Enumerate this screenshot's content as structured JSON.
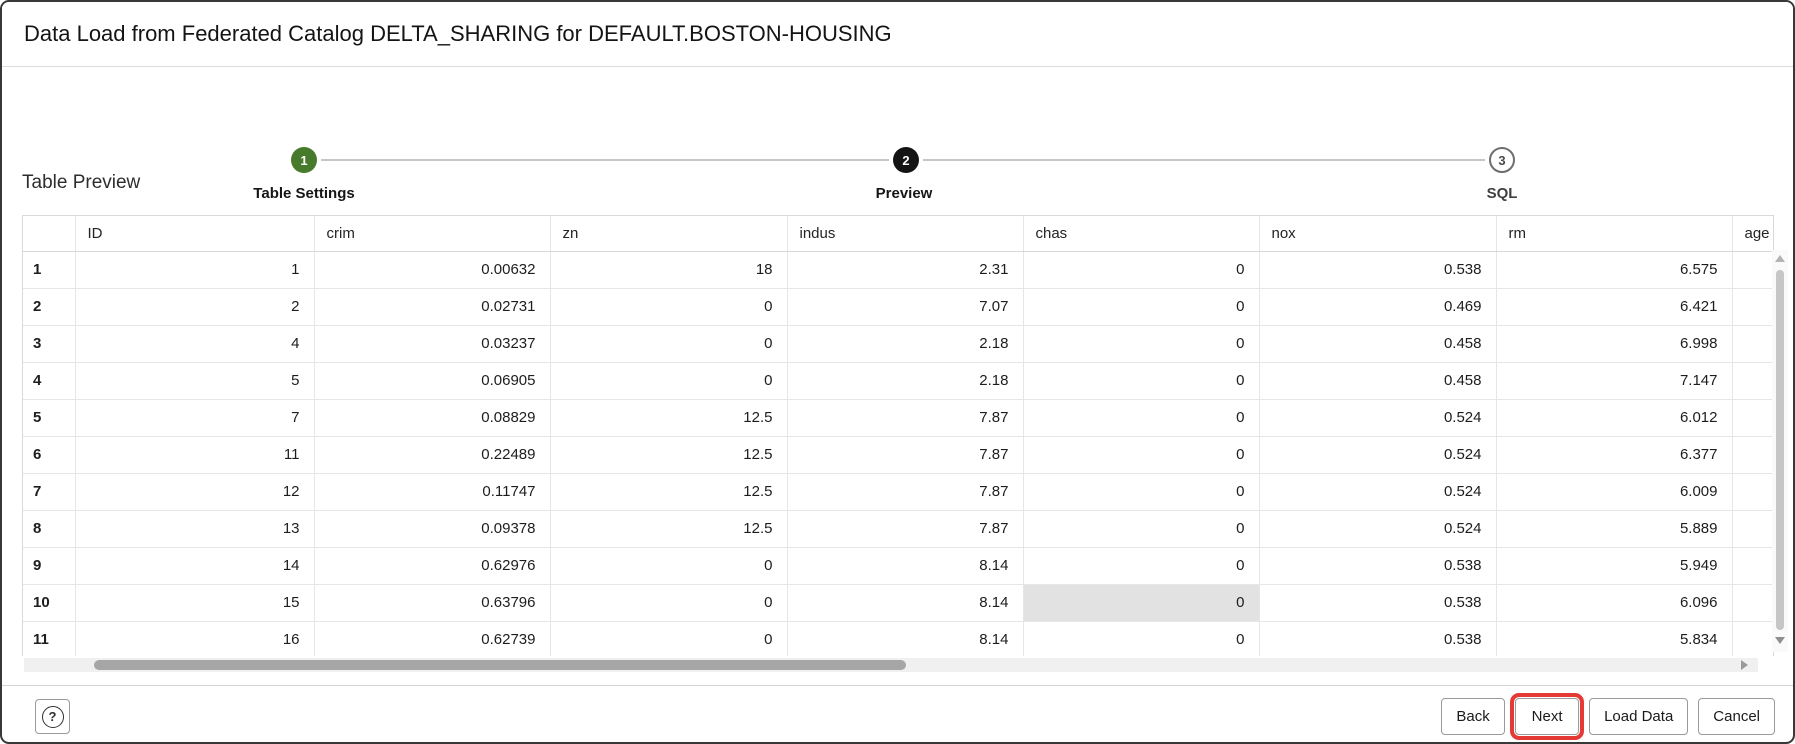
{
  "window": {
    "title": "Data Load from Federated Catalog DELTA_SHARING for DEFAULT.BOSTON-HOUSING"
  },
  "stepper": {
    "steps": [
      {
        "number": "1",
        "label": "Table Settings",
        "state": "complete"
      },
      {
        "number": "2",
        "label": "Preview",
        "state": "active"
      },
      {
        "number": "3",
        "label": "SQL",
        "state": "upcoming"
      }
    ]
  },
  "section": {
    "title": "Table Preview"
  },
  "table": {
    "columns": [
      "",
      "ID",
      "crim",
      "zn",
      "indus",
      "chas",
      "nox",
      "rm",
      "age"
    ],
    "rows": [
      [
        "1",
        "1",
        "0.00632",
        "18",
        "2.31",
        "0",
        "0.538",
        "6.575",
        ""
      ],
      [
        "2",
        "2",
        "0.02731",
        "0",
        "7.07",
        "0",
        "0.469",
        "6.421",
        ""
      ],
      [
        "3",
        "4",
        "0.03237",
        "0",
        "2.18",
        "0",
        "0.458",
        "6.998",
        ""
      ],
      [
        "4",
        "5",
        "0.06905",
        "0",
        "2.18",
        "0",
        "0.458",
        "7.147",
        ""
      ],
      [
        "5",
        "7",
        "0.08829",
        "12.5",
        "7.87",
        "0",
        "0.524",
        "6.012",
        ""
      ],
      [
        "6",
        "11",
        "0.22489",
        "12.5",
        "7.87",
        "0",
        "0.524",
        "6.377",
        ""
      ],
      [
        "7",
        "12",
        "0.11747",
        "12.5",
        "7.87",
        "0",
        "0.524",
        "6.009",
        ""
      ],
      [
        "8",
        "13",
        "0.09378",
        "12.5",
        "7.87",
        "0",
        "0.524",
        "5.889",
        ""
      ],
      [
        "9",
        "14",
        "0.62976",
        "0",
        "8.14",
        "0",
        "0.538",
        "5.949",
        ""
      ],
      [
        "10",
        "15",
        "0.63796",
        "0",
        "8.14",
        "0",
        "0.538",
        "6.096",
        ""
      ],
      [
        "11",
        "16",
        "0.62739",
        "0",
        "8.14",
        "0",
        "0.538",
        "5.834",
        ""
      ]
    ],
    "selected_cell": {
      "row_index": 9,
      "col_index": 5
    }
  },
  "footer": {
    "help_label": "?",
    "buttons": [
      {
        "label": "Back",
        "highlighted": false
      },
      {
        "label": "Next",
        "highlighted": true
      },
      {
        "label": "Load Data",
        "highlighted": false
      },
      {
        "label": "Cancel",
        "highlighted": false
      }
    ]
  },
  "colors": {
    "step_complete": "#487a2b",
    "step_active": "#141414",
    "annotation": "#e53935",
    "selected_cell_bg": "#e2e2e2"
  }
}
